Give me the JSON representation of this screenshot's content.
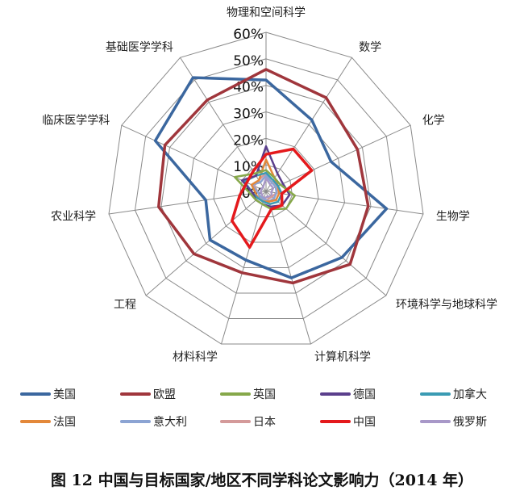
{
  "chart_data": {
    "type": "radar",
    "title": "图 12 中国与目标国家/地区不同学科论文影响力（2014 年）",
    "categories": [
      "物理和空间科学",
      "数学",
      "化学",
      "生物学",
      "环境科学与地球科学",
      "计算机科学",
      "材料科学",
      "工程",
      "农业科学",
      "临床医学学科",
      "基础医学学科"
    ],
    "axis": {
      "min": 0,
      "max": 60,
      "step": 10,
      "tick_labels": [
        "0%",
        "10%",
        "20%",
        "30%",
        "40%",
        "50%",
        "60%"
      ]
    },
    "grid": true,
    "legend_position": "bottom",
    "series": [
      {
        "name": "美国",
        "color": "#3b679f",
        "values": [
          42,
          32,
          27,
          46,
          38,
          34,
          27,
          28,
          23,
          46,
          51
        ]
      },
      {
        "name": "欧盟",
        "color": "#a0363c",
        "values": [
          46,
          42,
          38,
          39,
          42,
          36,
          32,
          36,
          41,
          42,
          41
        ]
      },
      {
        "name": "英国",
        "color": "#86a84a",
        "values": [
          8,
          6,
          6,
          11,
          10,
          7,
          5,
          5,
          6,
          13,
          8
        ]
      },
      {
        "name": "德国",
        "color": "#5b3f8c",
        "values": [
          17,
          8,
          7,
          9,
          8,
          6,
          5,
          5,
          5,
          10,
          7
        ]
      },
      {
        "name": "加拿大",
        "color": "#3a9bb3",
        "values": [
          7,
          5,
          5,
          6,
          6,
          5,
          4,
          4,
          5,
          9,
          7
        ]
      },
      {
        "name": "法国",
        "color": "#e3883a",
        "values": [
          12,
          6,
          5,
          5,
          5,
          4,
          4,
          4,
          4,
          6,
          5
        ]
      },
      {
        "name": "意大利",
        "color": "#8ca4d3",
        "values": [
          6,
          4,
          4,
          4,
          4,
          4,
          3,
          3,
          3,
          6,
          4
        ]
      },
      {
        "name": "日本",
        "color": "#d49a9a",
        "values": [
          7,
          4,
          5,
          4,
          3,
          3,
          4,
          3,
          3,
          5,
          5
        ]
      },
      {
        "name": "中国",
        "color": "#e4191c",
        "values": [
          14,
          19,
          19,
          6,
          8,
          7,
          22,
          17,
          10,
          8,
          9
        ]
      },
      {
        "name": "俄罗斯",
        "color": "#a898c8",
        "values": [
          5,
          3,
          3,
          2,
          3,
          2,
          3,
          2,
          2,
          2,
          2
        ]
      }
    ]
  }
}
